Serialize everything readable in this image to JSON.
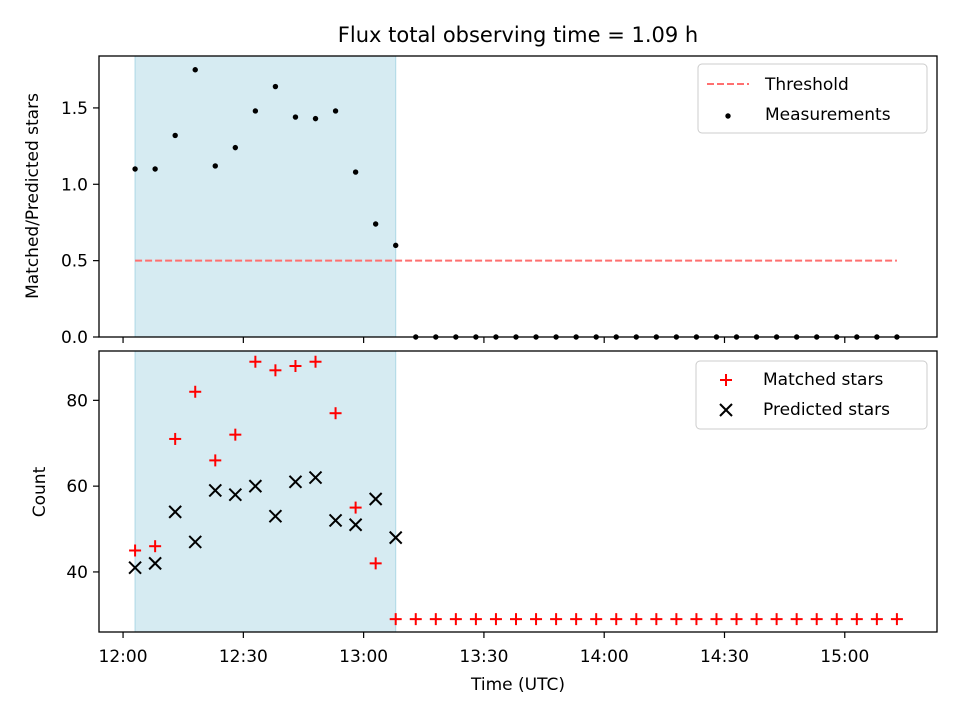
{
  "title": "Flux total observing time = 1.09 h",
  "colors": {
    "threshold": "#ff6f6f",
    "measurement": "#000000",
    "matched": "#ff0000",
    "predicted": "#000000",
    "span": "#add8e6"
  },
  "chart_data": [
    {
      "type": "scatter",
      "ylabel": "Matched/Predicted stars",
      "ylim": [
        0,
        1.84
      ],
      "yticks": [
        0.0,
        0.5,
        1.0,
        1.5
      ],
      "ytick_labels": [
        "0.0",
        "0.5",
        "1.0",
        "1.5"
      ],
      "xlim": [
        "11:54",
        "15:23"
      ],
      "xticks": [
        "12:00",
        "12:30",
        "13:00",
        "13:30",
        "14:00",
        "14:30",
        "15:00"
      ],
      "show_xtick_labels": false,
      "grid": false,
      "legend_position": "top-right",
      "legend": [
        "Threshold",
        "Measurements"
      ],
      "highlight_span": {
        "start": "12:03",
        "end": "13:08"
      },
      "threshold": {
        "name": "Threshold",
        "y": 0.5,
        "x_range": [
          "12:03",
          "15:13"
        ]
      },
      "series": [
        {
          "name": "Measurements",
          "x": [
            "12:03",
            "12:08",
            "12:13",
            "12:18",
            "12:23",
            "12:28",
            "12:33",
            "12:38",
            "12:43",
            "12:48",
            "12:53",
            "12:58",
            "13:03",
            "13:08",
            "13:13",
            "13:18",
            "13:23",
            "13:28",
            "13:33",
            "13:38",
            "13:43",
            "13:48",
            "13:53",
            "13:58",
            "14:03",
            "14:08",
            "14:13",
            "14:18",
            "14:23",
            "14:28",
            "14:33",
            "14:38",
            "14:43",
            "14:48",
            "14:53",
            "14:58",
            "15:03",
            "15:08",
            "15:13"
          ],
          "y": [
            1.1,
            1.1,
            1.32,
            1.75,
            1.12,
            1.24,
            1.48,
            1.64,
            1.44,
            1.43,
            1.48,
            1.08,
            0.74,
            0.6,
            0,
            0,
            0,
            0,
            0,
            0,
            0,
            0,
            0,
            0,
            0,
            0,
            0,
            0,
            0,
            0,
            0,
            0,
            0,
            0,
            0,
            0,
            0,
            0,
            0
          ]
        }
      ]
    },
    {
      "type": "scatter",
      "xlabel": "Time (UTC)",
      "ylabel": "Count",
      "ylim": [
        26,
        91.5
      ],
      "yticks": [
        40,
        60,
        80
      ],
      "ytick_labels": [
        "40",
        "60",
        "80"
      ],
      "xlim": [
        "11:54",
        "15:23"
      ],
      "xticks": [
        "12:00",
        "12:30",
        "13:00",
        "13:30",
        "14:00",
        "14:30",
        "15:00"
      ],
      "xtick_labels": [
        "12:00",
        "12:30",
        "13:00",
        "13:30",
        "14:00",
        "14:30",
        "15:00"
      ],
      "grid": false,
      "legend_position": "top-right",
      "legend": [
        "Matched stars",
        "Predicted stars"
      ],
      "highlight_span": {
        "start": "12:03",
        "end": "13:08"
      },
      "series": [
        {
          "name": "Matched stars",
          "marker": "plus",
          "x": [
            "12:03",
            "12:08",
            "12:13",
            "12:18",
            "12:23",
            "12:28",
            "12:33",
            "12:38",
            "12:43",
            "12:48",
            "12:53",
            "12:58",
            "13:03",
            "13:08",
            "13:13",
            "13:18",
            "13:23",
            "13:28",
            "13:33",
            "13:38",
            "13:43",
            "13:48",
            "13:53",
            "13:58",
            "14:03",
            "14:08",
            "14:13",
            "14:18",
            "14:23",
            "14:28",
            "14:33",
            "14:38",
            "14:43",
            "14:48",
            "14:53",
            "14:58",
            "15:03",
            "15:08",
            "15:13"
          ],
          "y": [
            45,
            46,
            71,
            82,
            66,
            72,
            89,
            87,
            88,
            89,
            77,
            55,
            42,
            29,
            29,
            29,
            29,
            29,
            29,
            29,
            29,
            29,
            29,
            29,
            29,
            29,
            29,
            29,
            29,
            29,
            29,
            29,
            29,
            29,
            29,
            29,
            29,
            29,
            29
          ]
        },
        {
          "name": "Predicted stars",
          "marker": "x",
          "x": [
            "12:03",
            "12:08",
            "12:13",
            "12:18",
            "12:23",
            "12:28",
            "12:33",
            "12:38",
            "12:43",
            "12:48",
            "12:53",
            "12:58",
            "13:03",
            "13:08"
          ],
          "y": [
            41,
            42,
            54,
            47,
            59,
            58,
            60,
            53,
            61,
            62,
            52,
            51,
            57,
            48
          ]
        }
      ]
    }
  ]
}
